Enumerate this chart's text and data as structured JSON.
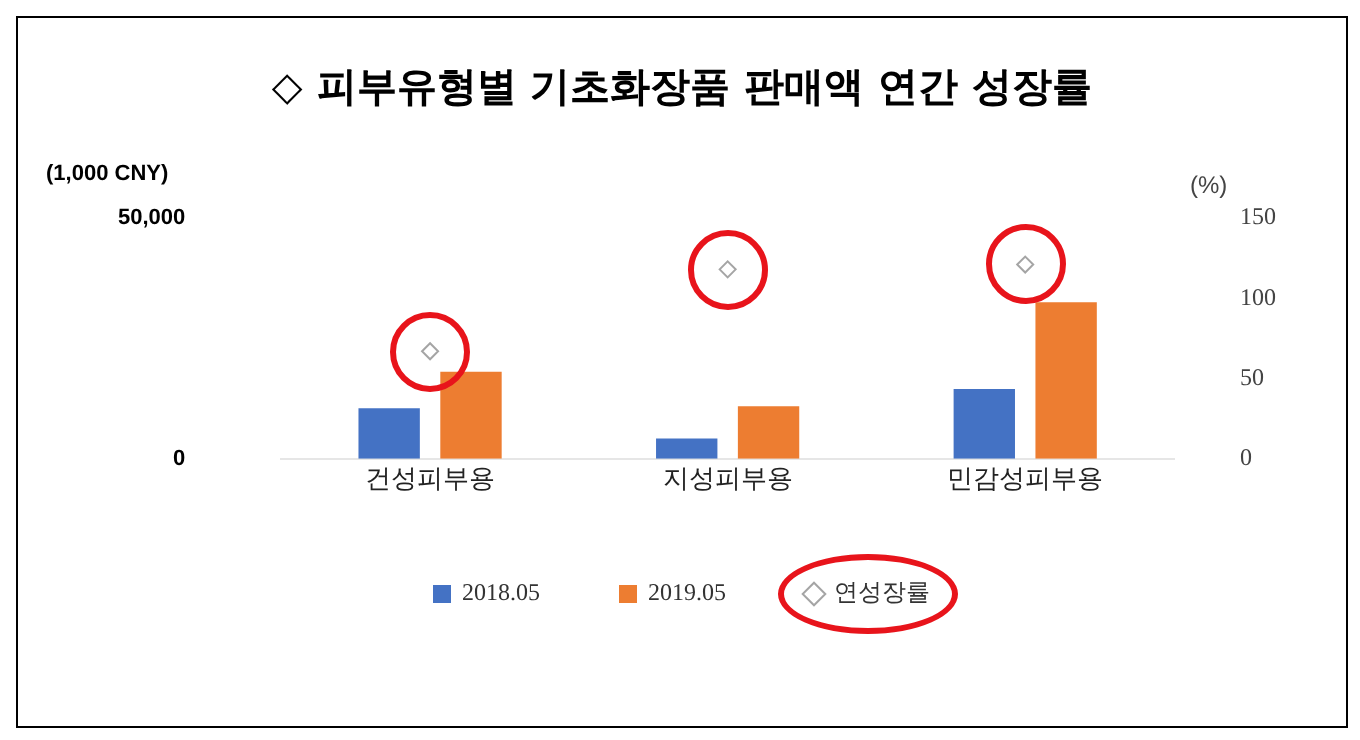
{
  "chart_data": {
    "type": "bar",
    "title": "◇ 피부유형별 기초화장품 판매액 연간 성장률",
    "ylabel": "(1,000 CNY)",
    "y2label": "(%)",
    "categories": [
      "건성피부용",
      "지성피부용",
      "민감성피부용"
    ],
    "series": [
      {
        "name": "2018.05",
        "color": "#4472c4",
        "values": [
          10500,
          4200,
          14500
        ]
      },
      {
        "name": "2019.05",
        "color": "#ed7d31",
        "values": [
          18100,
          10900,
          32500
        ]
      },
      {
        "name": "연성장률",
        "type": "scatter",
        "axis": "y2",
        "color": "#a5a5a5",
        "marker": "diamond",
        "x": [
          "건성피부용",
          "지성피부용",
          "민감성피부용"
        ],
        "values": [
          67,
          118,
          121
        ]
      }
    ],
    "ylim": [
      0,
      50000
    ],
    "yticks": [
      0,
      {
        "value": 50000,
        "label": "50,000"
      }
    ],
    "y2lim": [
      0,
      150
    ],
    "y2ticks": [
      0,
      50,
      100,
      150
    ],
    "legend": "bottom",
    "grid": false
  }
}
